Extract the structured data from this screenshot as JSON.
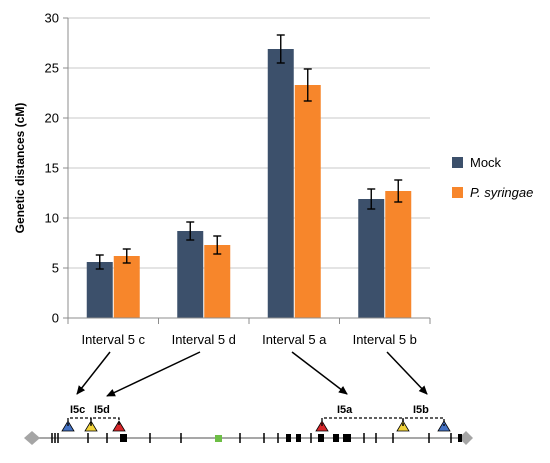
{
  "chart_data": {
    "type": "bar",
    "ylabel": "Genetic distances (cM)",
    "xlabel": "",
    "ylim": [
      0,
      30
    ],
    "yticks": [
      0,
      5,
      10,
      15,
      20,
      25,
      30
    ],
    "grid": true,
    "legend_position": "right",
    "categories": [
      "Interval 5 c",
      "Interval 5 d",
      "Interval 5 a",
      "Interval 5 b"
    ],
    "series": [
      {
        "name": "Mock",
        "color": "#3c506b",
        "values": [
          5.6,
          8.7,
          26.9,
          11.9
        ],
        "errors": [
          0.7,
          0.9,
          1.4,
          1.0
        ]
      },
      {
        "name": "P. syringae",
        "color": "#f7862b",
        "values": [
          6.2,
          7.3,
          23.3,
          12.7
        ],
        "errors": [
          0.7,
          0.9,
          1.6,
          1.1
        ]
      }
    ]
  },
  "map": {
    "interval_labels": [
      "I5c",
      "I5d",
      "I5a",
      "I5b"
    ],
    "marker_colors": {
      "blue": "#4472c4",
      "yellow": "#f2d33a",
      "red": "#d6262a",
      "green": "#6dbe45",
      "end": "#a5a5a5"
    }
  }
}
